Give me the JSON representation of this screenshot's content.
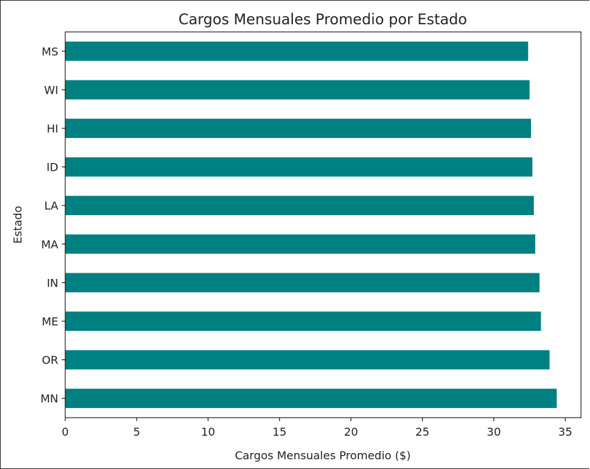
{
  "chart_data": {
    "type": "bar",
    "orientation": "horizontal",
    "title": "Cargos Mensuales Promedio por Estado",
    "xlabel": "Cargos Mensuales Promedio ($)",
    "ylabel": "Estado",
    "categories": [
      "MN",
      "OR",
      "ME",
      "IN",
      "MA",
      "LA",
      "ID",
      "HI",
      "WI",
      "MS"
    ],
    "values": [
      34.4,
      33.9,
      33.3,
      33.2,
      32.9,
      32.8,
      32.7,
      32.6,
      32.5,
      32.4
    ],
    "xlim": [
      0,
      36.1
    ],
    "xticks": [
      0,
      5,
      10,
      15,
      20,
      25,
      30,
      35
    ],
    "grid": false,
    "bar_color": "#008080"
  }
}
